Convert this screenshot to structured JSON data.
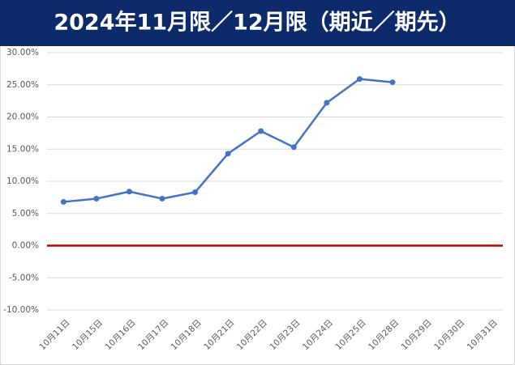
{
  "chart_data": {
    "type": "line",
    "title": "2024年11月限／12月限（期近／期先）",
    "categories": [
      "10月11日",
      "10月15日",
      "10月16日",
      "10月17日",
      "10月18日",
      "10月21日",
      "10月22日",
      "10月23日",
      "10月24日",
      "10月25日",
      "10月28日",
      "10月29日",
      "10月30日",
      "10月31日"
    ],
    "series": [
      {
        "color": "#4472c4",
        "values": [
          6.8,
          7.3,
          8.4,
          7.3,
          8.3,
          14.3,
          17.8,
          15.3,
          22.2,
          25.9,
          25.4,
          null,
          null,
          null
        ]
      }
    ],
    "ylim": [
      -10,
      30
    ],
    "yticks": [
      {
        "value": -10,
        "label": "-10.00%"
      },
      {
        "value": -5,
        "label": "-5.00%"
      },
      {
        "value": 0,
        "label": "0.00%"
      },
      {
        "value": 5,
        "label": "5.00%"
      },
      {
        "value": 10,
        "label": "10.00%"
      },
      {
        "value": 15,
        "label": "15.00%"
      },
      {
        "value": 20,
        "label": "20.00%"
      },
      {
        "value": 25,
        "label": "25.00%"
      },
      {
        "value": 30,
        "label": "30.00%"
      }
    ],
    "grid": true,
    "zero_line_color": "#c00000",
    "title_background": "#0d2a6b"
  }
}
